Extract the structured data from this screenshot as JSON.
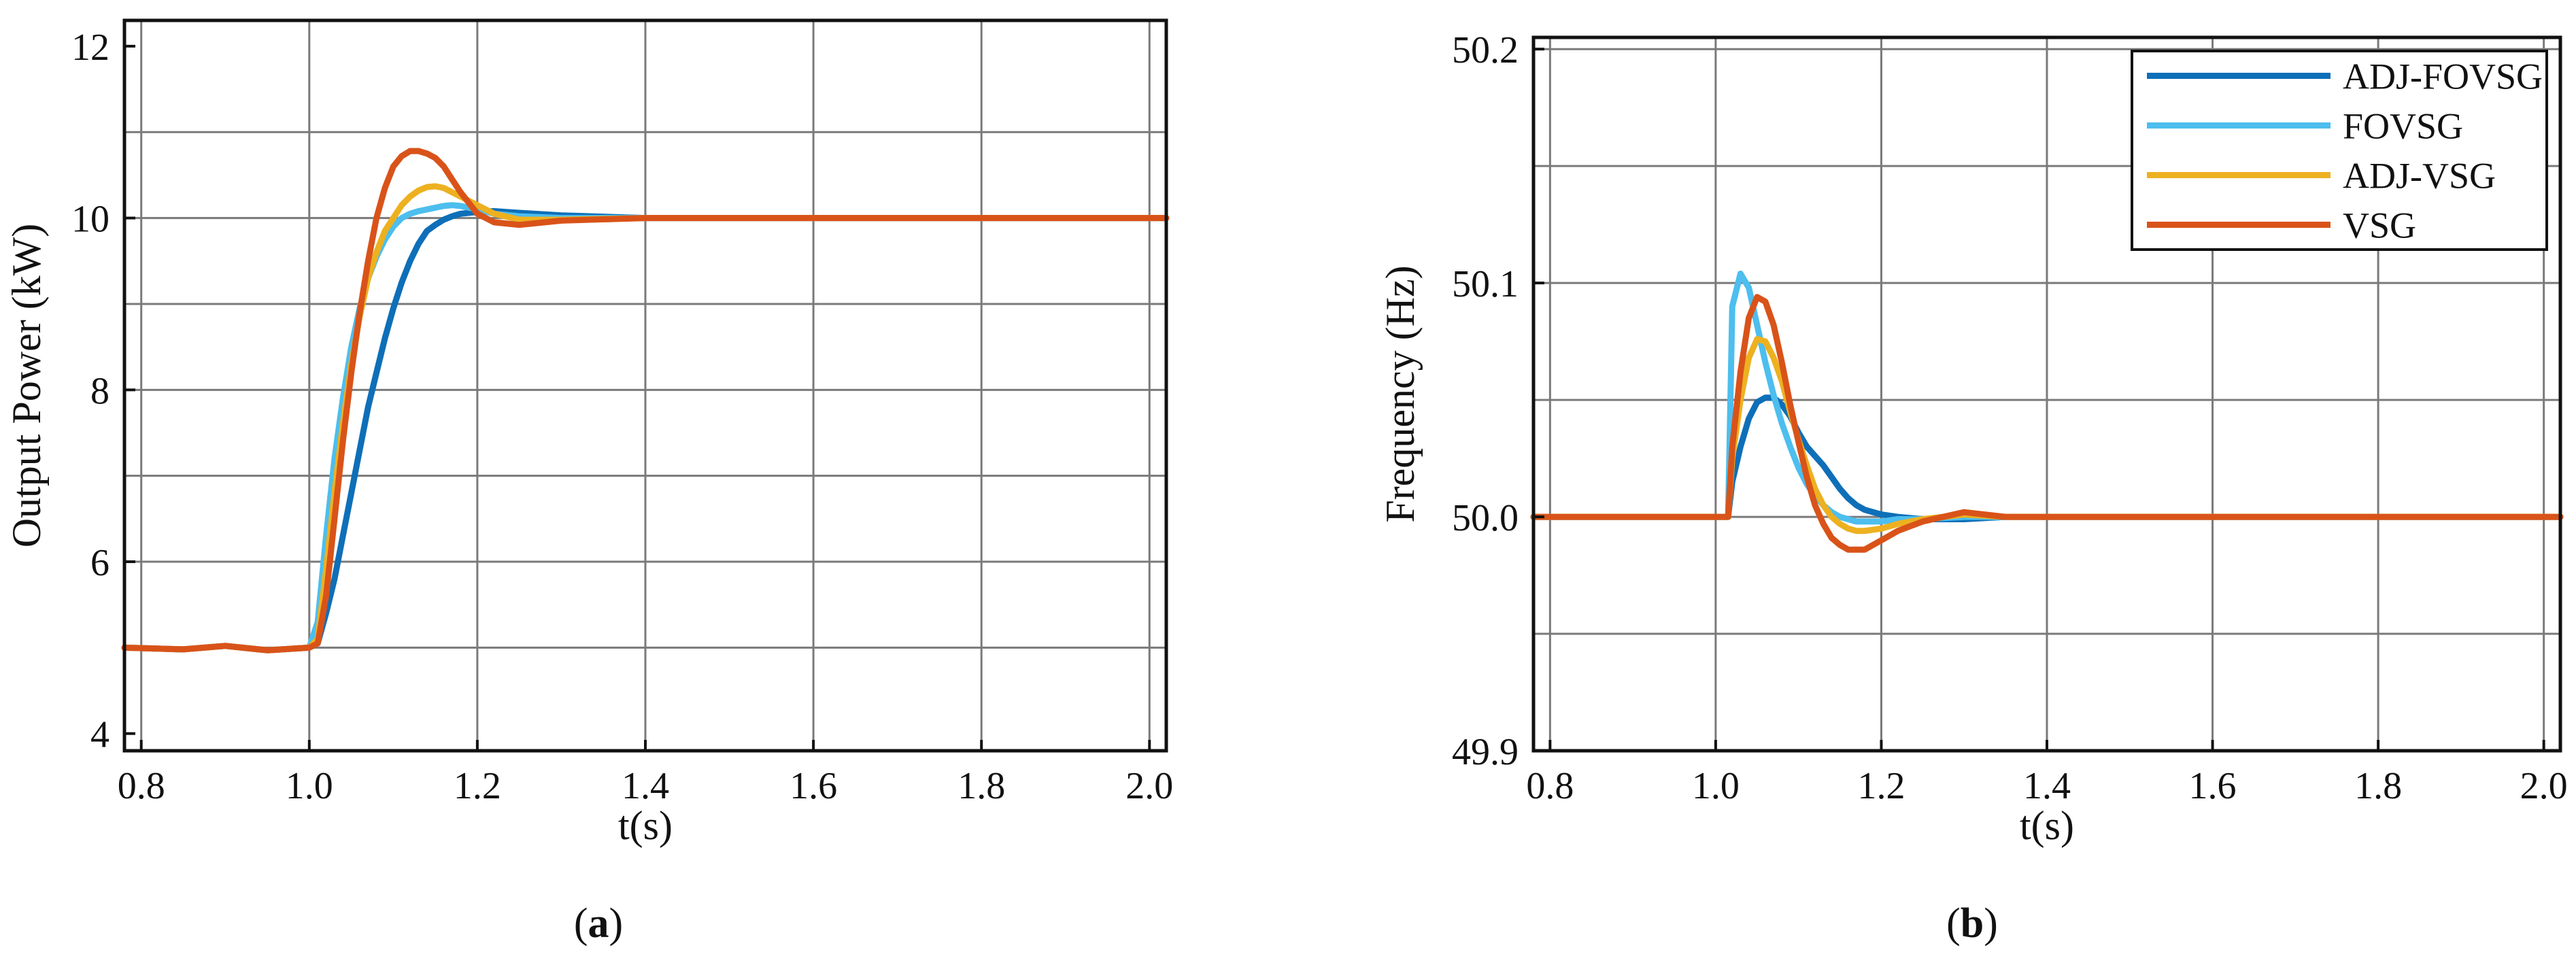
{
  "figure": {
    "panels": [
      {
        "label_open": "(",
        "label_letter": "a",
        "label_close": ")"
      },
      {
        "label_open": "(",
        "label_letter": "b",
        "label_close": ")"
      }
    ]
  },
  "chart_data": [
    {
      "type": "line",
      "title": "",
      "xlabel": "t(s)",
      "ylabel": "Output Power (kW)",
      "xlim": [
        0.78,
        2.02
      ],
      "ylim": [
        3.8,
        12.3
      ],
      "xticks": [
        0.8,
        1.0,
        1.2,
        1.4,
        1.6,
        1.8,
        2.0
      ],
      "xtick_labels": [
        "0.8",
        "1.0",
        "1.2",
        "1.4",
        "1.6",
        "1.8",
        "2.0"
      ],
      "yticks": [
        4,
        6,
        8,
        10,
        12
      ],
      "ytick_labels": [
        "4",
        "6",
        "8",
        "10",
        "12"
      ],
      "grid_x": [
        0.8,
        1.0,
        1.2,
        1.4,
        1.6,
        1.8,
        2.0
      ],
      "grid_y": [
        5,
        6,
        7,
        8,
        9,
        10,
        11
      ],
      "grid": true,
      "legend": null,
      "series": [
        {
          "color": "#0E6FB8",
          "x": [
            0.78,
            0.85,
            0.9,
            0.95,
            1.0,
            1.01,
            1.02,
            1.03,
            1.04,
            1.05,
            1.06,
            1.07,
            1.08,
            1.09,
            1.1,
            1.11,
            1.12,
            1.13,
            1.14,
            1.15,
            1.16,
            1.17,
            1.18,
            1.2,
            1.22,
            1.25,
            1.3,
            1.4,
            1.5,
            1.6,
            1.7,
            1.8,
            1.9,
            2.0,
            2.02
          ],
          "y": [
            5.0,
            4.98,
            5.02,
            4.97,
            5.0,
            5.05,
            5.4,
            5.8,
            6.3,
            6.8,
            7.3,
            7.8,
            8.2,
            8.6,
            8.95,
            9.25,
            9.5,
            9.7,
            9.85,
            9.92,
            9.98,
            10.02,
            10.05,
            10.07,
            10.08,
            10.06,
            10.03,
            10.0,
            10.0,
            10.0,
            10.0,
            10.0,
            10.0,
            10.0,
            10.0
          ]
        },
        {
          "color": "#4DBEEE",
          "x": [
            0.78,
            0.85,
            0.9,
            0.95,
            1.0,
            1.01,
            1.02,
            1.03,
            1.04,
            1.05,
            1.06,
            1.07,
            1.08,
            1.09,
            1.1,
            1.11,
            1.12,
            1.13,
            1.14,
            1.15,
            1.16,
            1.17,
            1.18,
            1.2,
            1.22,
            1.25,
            1.3,
            1.4,
            1.5,
            1.6,
            1.7,
            1.8,
            1.9,
            2.0,
            2.02
          ],
          "y": [
            5.0,
            4.98,
            5.02,
            4.97,
            5.0,
            5.3,
            6.3,
            7.2,
            7.9,
            8.5,
            8.95,
            9.3,
            9.55,
            9.75,
            9.9,
            10.0,
            10.05,
            10.08,
            10.1,
            10.12,
            10.14,
            10.15,
            10.14,
            10.1,
            10.05,
            10.02,
            10.0,
            10.0,
            10.0,
            10.0,
            10.0,
            10.0,
            10.0,
            10.0,
            10.0
          ]
        },
        {
          "color": "#EDB120",
          "x": [
            0.78,
            0.85,
            0.9,
            0.95,
            1.0,
            1.01,
            1.02,
            1.03,
            1.04,
            1.05,
            1.06,
            1.07,
            1.08,
            1.09,
            1.1,
            1.11,
            1.12,
            1.13,
            1.14,
            1.15,
            1.16,
            1.17,
            1.18,
            1.2,
            1.22,
            1.25,
            1.3,
            1.4,
            1.5,
            1.6,
            1.7,
            1.8,
            1.9,
            2.0,
            2.02
          ],
          "y": [
            5.0,
            4.98,
            5.02,
            4.97,
            5.0,
            5.1,
            5.9,
            6.8,
            7.6,
            8.3,
            8.85,
            9.3,
            9.6,
            9.85,
            10.0,
            10.15,
            10.25,
            10.32,
            10.36,
            10.37,
            10.35,
            10.3,
            10.25,
            10.15,
            10.05,
            9.98,
            9.98,
            10.0,
            10.0,
            10.0,
            10.0,
            10.0,
            10.0,
            10.0,
            10.0
          ]
        },
        {
          "color": "#D95319",
          "x": [
            0.78,
            0.85,
            0.9,
            0.95,
            1.0,
            1.01,
            1.02,
            1.03,
            1.04,
            1.05,
            1.06,
            1.07,
            1.08,
            1.09,
            1.1,
            1.11,
            1.12,
            1.13,
            1.14,
            1.15,
            1.16,
            1.17,
            1.18,
            1.2,
            1.22,
            1.25,
            1.3,
            1.4,
            1.5,
            1.6,
            1.7,
            1.8,
            1.9,
            2.0,
            2.02
          ],
          "y": [
            5.0,
            4.98,
            5.02,
            4.97,
            5.0,
            5.05,
            5.6,
            6.5,
            7.4,
            8.2,
            8.9,
            9.5,
            10.0,
            10.35,
            10.6,
            10.72,
            10.78,
            10.78,
            10.75,
            10.7,
            10.6,
            10.45,
            10.3,
            10.05,
            9.95,
            9.92,
            9.97,
            10.0,
            10.0,
            10.0,
            10.0,
            10.0,
            10.0,
            10.0,
            10.0
          ]
        }
      ]
    },
    {
      "type": "line",
      "title": "",
      "xlabel": "t(s)",
      "ylabel": "Frequency (Hz)",
      "xlim": [
        0.78,
        2.02
      ],
      "ylim": [
        49.9,
        50.205
      ],
      "xticks": [
        0.8,
        1.0,
        1.2,
        1.4,
        1.6,
        1.8,
        2.0
      ],
      "xtick_labels": [
        "0.8",
        "1.0",
        "1.2",
        "1.4",
        "1.6",
        "1.8",
        "2.0"
      ],
      "yticks": [
        49.9,
        50.0,
        50.1,
        50.2
      ],
      "ytick_labels": [
        "49.9",
        "50.0",
        "50.1",
        "50.2"
      ],
      "grid_x": [
        0.8,
        1.0,
        1.2,
        1.4,
        1.6,
        1.8,
        2.0
      ],
      "grid_y": [
        49.95,
        50.0,
        50.05,
        50.1,
        50.15,
        50.2
      ],
      "grid": true,
      "legend": "top-right",
      "series": [
        {
          "name": "ADJ-FOVSG",
          "color": "#0E6FB8",
          "x": [
            0.78,
            0.9,
            1.0,
            1.01,
            1.015,
            1.02,
            1.03,
            1.04,
            1.05,
            1.06,
            1.07,
            1.08,
            1.09,
            1.1,
            1.11,
            1.12,
            1.13,
            1.14,
            1.15,
            1.16,
            1.17,
            1.18,
            1.2,
            1.22,
            1.25,
            1.3,
            1.35,
            1.4,
            1.5,
            1.6,
            1.7,
            1.8,
            1.9,
            2.0,
            2.02
          ],
          "y": [
            50.0,
            50.0,
            50.0,
            50.0,
            50.0,
            50.015,
            50.03,
            50.042,
            50.049,
            50.051,
            50.051,
            50.048,
            50.043,
            50.036,
            50.03,
            50.026,
            50.022,
            50.017,
            50.012,
            50.008,
            50.005,
            50.003,
            50.001,
            50.0,
            49.999,
            49.999,
            50.0,
            50.0,
            50.0,
            50.0,
            50.0,
            50.0,
            50.0,
            50.0,
            50.0
          ]
        },
        {
          "name": "FOVSG",
          "color": "#4DBEEE",
          "x": [
            0.78,
            0.9,
            1.0,
            1.01,
            1.015,
            1.02,
            1.03,
            1.04,
            1.05,
            1.06,
            1.07,
            1.08,
            1.09,
            1.1,
            1.11,
            1.12,
            1.13,
            1.14,
            1.15,
            1.16,
            1.17,
            1.18,
            1.2,
            1.22,
            1.25,
            1.3,
            1.35,
            1.4,
            1.5,
            1.6,
            1.7,
            1.8,
            1.9,
            2.0,
            2.02
          ],
          "y": [
            50.0,
            50.0,
            50.0,
            50.0,
            50.0,
            50.09,
            50.104,
            50.098,
            50.082,
            50.066,
            50.052,
            50.04,
            50.03,
            50.021,
            50.014,
            50.009,
            50.005,
            50.002,
            50.0,
            49.999,
            49.998,
            49.998,
            49.998,
            49.999,
            49.999,
            50.0,
            50.0,
            50.0,
            50.0,
            50.0,
            50.0,
            50.0,
            50.0,
            50.0,
            50.0
          ]
        },
        {
          "name": "ADJ-VSG",
          "color": "#EDB120",
          "x": [
            0.78,
            0.9,
            1.0,
            1.01,
            1.015,
            1.02,
            1.03,
            1.04,
            1.05,
            1.06,
            1.07,
            1.08,
            1.09,
            1.1,
            1.11,
            1.12,
            1.13,
            1.14,
            1.15,
            1.16,
            1.17,
            1.18,
            1.2,
            1.22,
            1.25,
            1.3,
            1.35,
            1.4,
            1.5,
            1.6,
            1.7,
            1.8,
            1.9,
            2.0,
            2.02
          ],
          "y": [
            50.0,
            50.0,
            50.0,
            50.0,
            50.0,
            50.025,
            50.05,
            50.068,
            50.076,
            50.075,
            50.068,
            50.058,
            50.045,
            50.033,
            50.022,
            50.012,
            50.005,
            50.0,
            49.997,
            49.995,
            49.994,
            49.994,
            49.995,
            49.997,
            49.999,
            50.001,
            50.0,
            50.0,
            50.0,
            50.0,
            50.0,
            50.0,
            50.0,
            50.0,
            50.0
          ]
        },
        {
          "name": "VSG",
          "color": "#D95319",
          "x": [
            0.78,
            0.9,
            1.0,
            1.01,
            1.015,
            1.02,
            1.03,
            1.04,
            1.05,
            1.06,
            1.07,
            1.08,
            1.09,
            1.1,
            1.11,
            1.12,
            1.13,
            1.14,
            1.15,
            1.16,
            1.17,
            1.18,
            1.2,
            1.22,
            1.25,
            1.3,
            1.35,
            1.4,
            1.5,
            1.6,
            1.7,
            1.8,
            1.9,
            2.0,
            2.02
          ],
          "y": [
            50.0,
            50.0,
            50.0,
            50.0,
            50.0,
            50.03,
            50.062,
            50.085,
            50.094,
            50.092,
            50.082,
            50.066,
            50.048,
            50.032,
            50.017,
            50.005,
            49.997,
            49.991,
            49.988,
            49.986,
            49.986,
            49.986,
            49.99,
            49.994,
            49.998,
            50.002,
            50.0,
            50.0,
            50.0,
            50.0,
            50.0,
            50.0,
            50.0,
            50.0,
            50.0
          ]
        }
      ]
    }
  ]
}
